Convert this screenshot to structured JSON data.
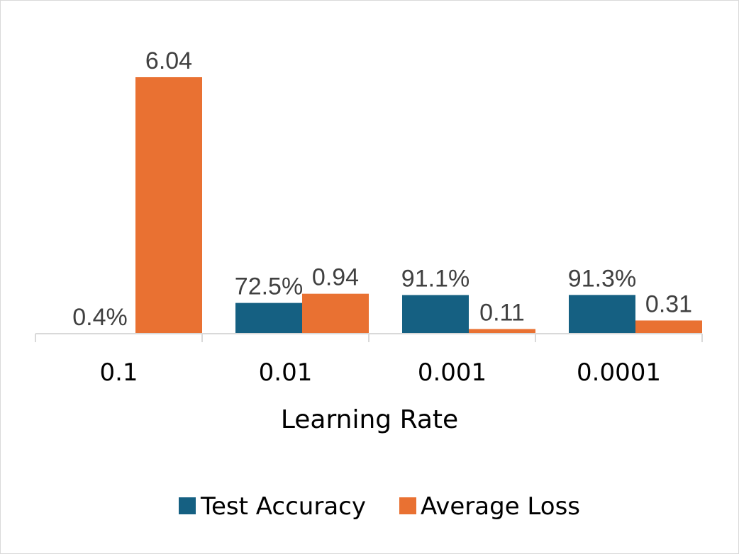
{
  "chart_data": {
    "type": "bar",
    "title": "",
    "xlabel": "Learning Rate",
    "ylabel": "",
    "categories": [
      "0.1",
      "0.01",
      "0.001",
      "0.0001"
    ],
    "series": [
      {
        "name": "Test Accuracy",
        "color": "#156082",
        "values": [
          0.4,
          72.5,
          91.1,
          91.3
        ],
        "labels": [
          "0.4%",
          "72.5%",
          "91.1%",
          "91.3%"
        ]
      },
      {
        "name": "Average Loss",
        "color": "#e97132",
        "values": [
          6.04,
          0.94,
          0.11,
          0.31
        ],
        "labels": [
          "6.04",
          "0.94",
          "0.11",
          "0.31"
        ]
      }
    ],
    "grid": false,
    "legend_position": "bottom"
  }
}
